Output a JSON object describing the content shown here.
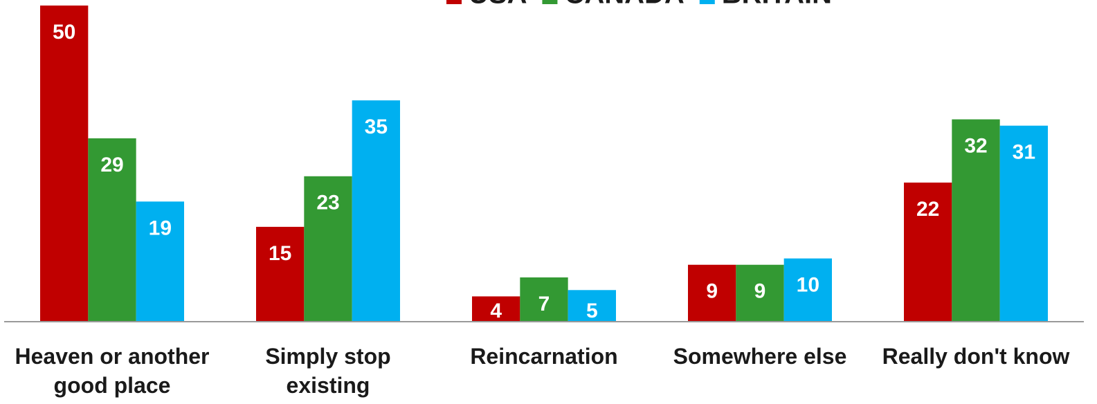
{
  "chart_data": {
    "type": "bar",
    "categories": [
      "Heaven or another good place",
      "Simply stop existing",
      "Reincarnation",
      "Somewhere else",
      "Really don't know"
    ],
    "series": [
      {
        "name": "USA",
        "color": "#c00000",
        "values": [
          50,
          15,
          4,
          9,
          22
        ]
      },
      {
        "name": "CANADA",
        "color": "#339933",
        "values": [
          29,
          23,
          7,
          9,
          32
        ]
      },
      {
        "name": "BRITAIN",
        "color": "#00b0f0",
        "values": [
          19,
          35,
          5,
          10,
          31
        ]
      }
    ],
    "ylim": [
      0,
      50
    ],
    "legend": "top"
  }
}
